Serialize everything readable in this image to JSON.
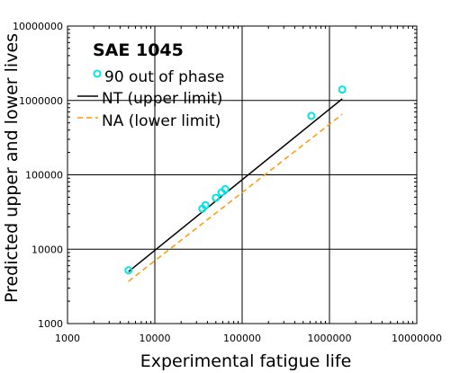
{
  "chart_data": {
    "type": "scatter",
    "title": "SAE 1045",
    "xlabel": "Experimental fatigue life",
    "ylabel": "Predicted upper and lower lives",
    "xscale": "log",
    "yscale": "log",
    "xlim": [
      1000,
      10000000
    ],
    "ylim": [
      1000,
      10000000
    ],
    "x_ticks": [
      "1000",
      "10000",
      "100000",
      "1000000",
      "10000000"
    ],
    "y_ticks": [
      "1000",
      "10000",
      "100000",
      "1000000",
      "10000000"
    ],
    "grid": "major",
    "legend_placement": "top-left",
    "series": [
      {
        "name": "90 out of phase",
        "kind": "scatter",
        "color": "#00e5e5",
        "marker": "open-circle",
        "points": [
          {
            "x": 5000,
            "y": 5200
          },
          {
            "x": 35000,
            "y": 35000
          },
          {
            "x": 38000,
            "y": 39000
          },
          {
            "x": 50000,
            "y": 49000
          },
          {
            "x": 58000,
            "y": 58000
          },
          {
            "x": 64000,
            "y": 64000
          },
          {
            "x": 620000,
            "y": 620000
          },
          {
            "x": 1400000,
            "y": 1400000
          }
        ]
      },
      {
        "name": "NT (upper limit)",
        "kind": "line",
        "color": "#000000",
        "dash": "solid",
        "points": [
          {
            "x": 5000,
            "y": 5000
          },
          {
            "x": 1400000,
            "y": 1050000
          }
        ]
      },
      {
        "name": "NA (lower limit)",
        "kind": "line",
        "color": "#ff9900",
        "dash": "dashed",
        "points": [
          {
            "x": 5000,
            "y": 3700
          },
          {
            "x": 1400000,
            "y": 650000
          }
        ]
      }
    ]
  }
}
